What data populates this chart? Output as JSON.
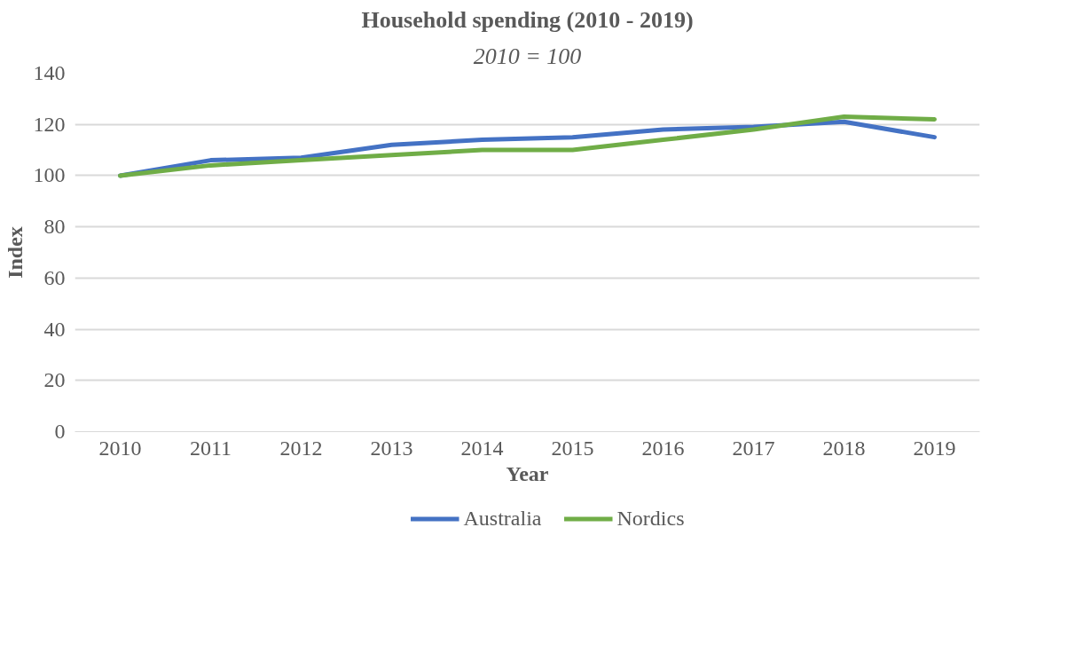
{
  "chart_data": {
    "type": "line",
    "title": "Household spending (2010 - 2019)",
    "subtitle": "2010 = 100",
    "xlabel": "Year",
    "ylabel": "Index",
    "categories": [
      "2010",
      "2011",
      "2012",
      "2013",
      "2014",
      "2015",
      "2016",
      "2017",
      "2018",
      "2019"
    ],
    "series": [
      {
        "name": "Australia",
        "color": "#4472c4",
        "values": [
          100,
          106,
          107,
          112,
          114,
          115,
          118,
          119,
          121,
          115
        ]
      },
      {
        "name": "Nordics",
        "color": "#70ad47",
        "values": [
          100,
          104,
          106,
          108,
          110,
          110,
          114,
          118,
          123,
          122
        ]
      }
    ],
    "ylim": [
      0,
      140
    ],
    "yticks": [
      0,
      20,
      40,
      60,
      80,
      100,
      120,
      140
    ],
    "grid": "y",
    "legend": "bottom",
    "marker": "none",
    "line_style": "solid"
  }
}
